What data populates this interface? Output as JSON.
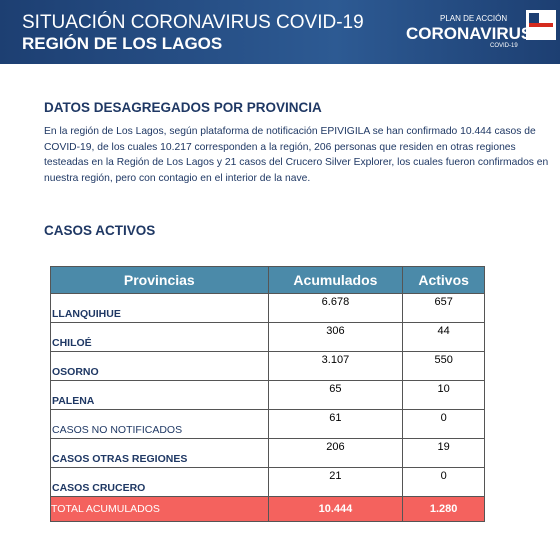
{
  "header": {
    "title": "SITUACIÓN CORONAVIRUS COVID-19",
    "subtitle": "REGIÓN DE LOS LAGOS",
    "logo_small": "PLAN DE ACCIÓN",
    "logo_main": "CORONAVIRUS",
    "logo_sub": "COVID-19"
  },
  "section": {
    "title": "DATOS DESAGREGADOS POR PROVINCIA",
    "paragraph": "En la región de Los Lagos, según plataforma de notificación EPIVIGILA se han confirmado 10.444 casos de COVID-19, de los cuales 10.217 corresponden a la región, 206 personas que residen en otras regiones testeadas en la Región de Los Lagos y 21 casos del Crucero Silver Explorer, los cuales fueron confirmados en nuestra región, pero con contagio en el interior de la nave."
  },
  "table": {
    "title": "CASOS ACTIVOS",
    "columns": [
      "Provincias",
      "Acumulados",
      "Activos"
    ],
    "rows": [
      [
        "LLANQUIHUE",
        "6.678",
        "657"
      ],
      [
        "CHILOÉ",
        "306",
        "44"
      ],
      [
        "OSORNO",
        "3.107",
        "550"
      ],
      [
        "PALENA",
        "65",
        "10"
      ],
      [
        "CASOS NO NOTIFICADOS",
        "61",
        "0"
      ],
      [
        "CASOS OTRAS REGIONES",
        "206",
        "19"
      ],
      [
        "CASOS CRUCERO",
        "21",
        "0"
      ]
    ],
    "total": [
      "TOTAL ACUMULADOS",
      "10.444",
      "1.280"
    ]
  }
}
